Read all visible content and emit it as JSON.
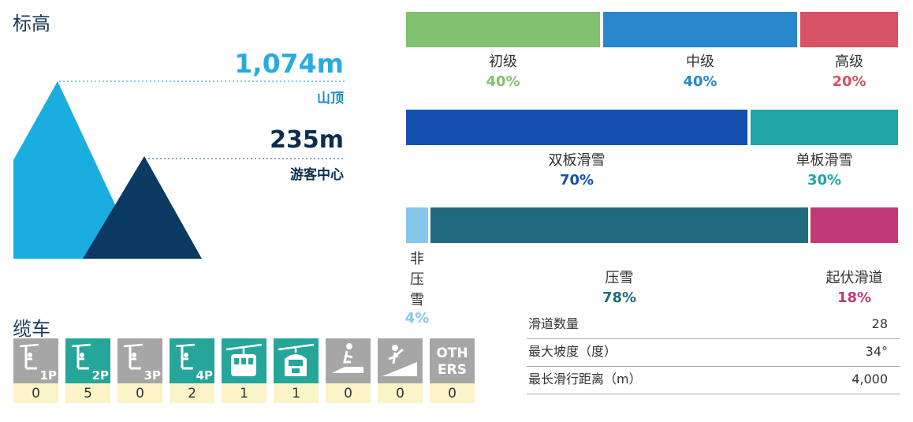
{
  "elevation": {
    "title": "标高",
    "summit_value": "1,074m",
    "summit_label": "山顶",
    "base_value": "235m",
    "base_label": "游客中心"
  },
  "difficulty": {
    "items": [
      {
        "label": "初级",
        "pct": "40%",
        "share": 0.4,
        "color": "#80c26f"
      },
      {
        "label": "中级",
        "pct": "40%",
        "share": 0.4,
        "color": "#2988cc"
      },
      {
        "label": "高级",
        "pct": "20%",
        "share": 0.2,
        "color": "#d65264"
      }
    ]
  },
  "skiing": {
    "items": [
      {
        "label": "双板滑雪",
        "pct": "70%",
        "share": 0.7,
        "color": "#1450b0"
      },
      {
        "label": "单板滑雪",
        "pct": "30%",
        "share": 0.3,
        "color": "#1fa6a6"
      }
    ]
  },
  "grooming": {
    "items": [
      {
        "label": "非压雪",
        "pct": "4%",
        "share": 0.04,
        "color": "#86c7ec"
      },
      {
        "label": "压雪",
        "pct": "78%",
        "share": 0.78,
        "color": "#216b7e"
      },
      {
        "label": "起伏滑道",
        "pct": "18%",
        "share": 0.18,
        "color": "#bf3a77"
      }
    ]
  },
  "lifts": {
    "title": "缆车",
    "items": [
      {
        "icon": "chairlift-1p-icon",
        "pax": "1P",
        "count": "0",
        "active": false
      },
      {
        "icon": "chairlift-2p-icon",
        "pax": "2P",
        "count": "5",
        "active": true
      },
      {
        "icon": "chairlift-3p-icon",
        "pax": "3P",
        "count": "0",
        "active": false
      },
      {
        "icon": "chairlift-4p-icon",
        "pax": "4P",
        "count": "2",
        "active": true
      },
      {
        "icon": "gondola-icon",
        "pax": "",
        "count": "1",
        "active": true
      },
      {
        "icon": "cabin-lift-icon",
        "pax": "",
        "count": "1",
        "active": true
      },
      {
        "icon": "magic-carpet-icon",
        "pax": "",
        "count": "0",
        "active": false
      },
      {
        "icon": "surface-lift-icon",
        "pax": "",
        "count": "0",
        "active": false
      },
      {
        "icon": "others-icon",
        "pax": "OTH ERS",
        "count": "0",
        "active": false
      }
    ]
  },
  "stats": {
    "rows": [
      {
        "label": "滑道数量",
        "value": "28"
      },
      {
        "label": "最大坡度（度）",
        "value": "34°"
      },
      {
        "label": "最长滑行距离（m）",
        "value": "4,000"
      }
    ]
  },
  "colors": {
    "inactive_lift": "#a6a6a6",
    "active_lift": "#26a59a",
    "count_bg": "#fbf4c9"
  }
}
